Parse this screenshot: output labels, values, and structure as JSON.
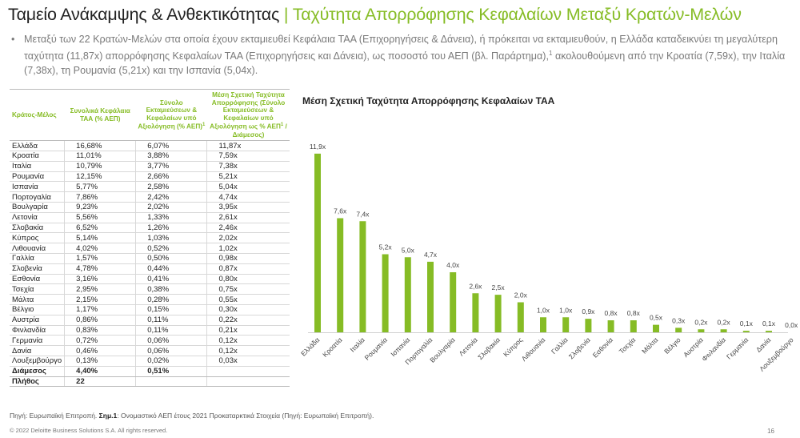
{
  "header": {
    "title_main": "Ταμείο Ανάκαμψης & Ανθεκτικότητας",
    "separator": "|",
    "title_sub": "Ταχύτητα Απορρόφησης Κεφαλαίων Μεταξύ Κρατών-Μελών"
  },
  "bullet": {
    "dot": "•",
    "text_a": "Μεταξύ των 22 Κρατών-Μελών στα οποία έχουν εκταμιευθεί Κεφάλαια ΤΑΑ (Επιχορηγήσεις & Δάνεια), ή πρόκειται να εκταμιευθούν, η Ελλάδα καταδεικνύει τη μεγαλύτερη ταχύτητα (11,87x) απορρόφησης Κεφαλαίων ΤΑΑ (Επιχορηγήσεις και Δάνεια), ως ποσοστό του ΑΕΠ (βλ. Παράρτημα),",
    "sup": "1",
    "text_b": " ακολουθούμενη από την Κροατία (7,59x), την Ιταλία (7,38x), τη Ρουμανία (5,21x) και την Ισπανία (5,04x)."
  },
  "table": {
    "headers": {
      "country": "Κράτος-Μέλος",
      "total": "Συνολικά Κεφάλαια ΤΑΑ (% ΑΕΠ)",
      "disbursed": "Σύνολο Εκταμιεύσεων & Κεφαλαίων υπό Αξιολόγηση (% ΑΕΠ)",
      "disbursed_sup": "1",
      "speed": "Μέση Σχετική Ταχύτητα Απορρόφησης (Σύνολο Εκταμιεύσεων & Κεφαλαίων υπό Αξιολόγηση ως % ΑΕΠ",
      "speed_sup": "1",
      "speed_tail": " / Διάμεσος)"
    },
    "rows": [
      [
        "Ελλάδα",
        "16,68%",
        "6,07%",
        "11,87x"
      ],
      [
        "Κροατία",
        "11,01%",
        "3,88%",
        "7,59x"
      ],
      [
        "Ιταλία",
        "10,79%",
        "3,77%",
        "7,38x"
      ],
      [
        "Ρουμανία",
        "12,15%",
        "2,66%",
        "5,21x"
      ],
      [
        "Ισπανία",
        "5,77%",
        "2,58%",
        "5,04x"
      ],
      [
        "Πορτογαλία",
        "7,86%",
        "2,42%",
        "4,74x"
      ],
      [
        "Βουλγαρία",
        "9,23%",
        "2,02%",
        "3,95x"
      ],
      [
        "Λετονία",
        "5,56%",
        "1,33%",
        "2,61x"
      ],
      [
        "Σλοβακία",
        "6,52%",
        "1,26%",
        "2,46x"
      ],
      [
        "Κύπρος",
        "5,14%",
        "1,03%",
        "2,02x"
      ],
      [
        "Λιθουανία",
        "4,02%",
        "0,52%",
        "1,02x"
      ],
      [
        "Γαλλία",
        "1,57%",
        "0,50%",
        "0,98x"
      ],
      [
        "Σλοβενία",
        "4,78%",
        "0,44%",
        "0,87x"
      ],
      [
        "Εσθονία",
        "3,16%",
        "0,41%",
        "0,80x"
      ],
      [
        "Τσεχία",
        "2,95%",
        "0,38%",
        "0,75x"
      ],
      [
        "Μάλτα",
        "2,15%",
        "0,28%",
        "0,55x"
      ],
      [
        "Βέλγιο",
        "1,17%",
        "0,15%",
        "0,30x"
      ],
      [
        "Αυστρία",
        "0,86%",
        "0,11%",
        "0,22x"
      ],
      [
        "Φινλανδία",
        "0,83%",
        "0,11%",
        "0,21x"
      ],
      [
        "Γερμανία",
        "0,72%",
        "0,06%",
        "0,12x"
      ],
      [
        "Δανία",
        "0,46%",
        "0,06%",
        "0,12x"
      ],
      [
        "Λουξεμβούργο",
        "0,13%",
        "0,02%",
        "0,03x"
      ]
    ],
    "median": [
      "Διάμεσος",
      "4,40%",
      "0,51%",
      ""
    ],
    "count": [
      "Πλήθος",
      "22",
      "",
      ""
    ]
  },
  "chart_data": {
    "type": "bar",
    "title": "Μέση Σχετική Ταχύτητα Απορρόφησης Κεφαλαίων ΤΑΑ",
    "categories": [
      "Ελλάδα",
      "Κροατία",
      "Ιταλία",
      "Ρουμανία",
      "Ισπανία",
      "Πορτογαλία",
      "Βουλγαρία",
      "Λετονία",
      "Σλοβακία",
      "Κύπρος",
      "Λιθουανία",
      "Γαλλία",
      "Σλοβενία",
      "Εσθονία",
      "Τσεχία",
      "Μάλτα",
      "Βέλγιο",
      "Αυστρία",
      "Φινλανδία",
      "Γερμανία",
      "Δανία",
      "Λουξεμβούργο"
    ],
    "values": [
      11.9,
      7.6,
      7.4,
      5.2,
      5.0,
      4.7,
      4.0,
      2.6,
      2.5,
      2.0,
      1.0,
      1.0,
      0.9,
      0.8,
      0.8,
      0.5,
      0.3,
      0.2,
      0.2,
      0.1,
      0.1,
      0.0
    ],
    "labels": [
      "11,9x",
      "7,6x",
      "7,4x",
      "5,2x",
      "5,0x",
      "4,7x",
      "4,0x",
      "2,6x",
      "2,5x",
      "2,0x",
      "1,0x",
      "1,0x",
      "0,9x",
      "0,8x",
      "0,8x",
      "0,5x",
      "0,3x",
      "0,2x",
      "0,2x",
      "0,1x",
      "0,1x",
      "0,0x"
    ],
    "xlabel": "",
    "ylabel": "",
    "ylim": [
      0,
      12
    ],
    "bar_color": "#86bc25",
    "grid": false
  },
  "footer": {
    "source_a": "Πηγή: Ευρωπαϊκή Επιτροπή.",
    "note_label": "Σημ.1",
    "source_b": ": Ονομαστικό ΑΕΠ έτους 2021   Προκαταρκτικά Στοιχεία (Πηγή: Ευρωπαϊκή Επιτροπή).",
    "copyright": "© 2022 Deloitte Business Solutions S.A. All rights reserved.",
    "page": "16"
  },
  "colors": {
    "accent": "#86bc25",
    "text": "#222222",
    "muted": "#7a7a7a"
  }
}
